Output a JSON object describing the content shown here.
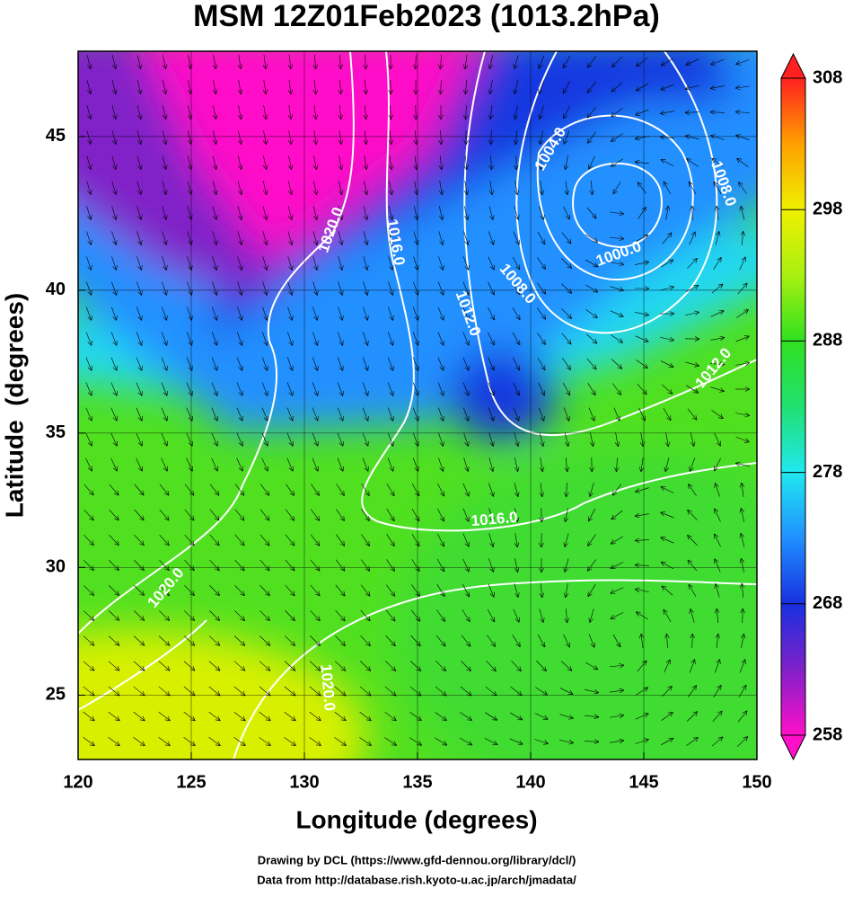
{
  "chart_data": {
    "type": "map",
    "title": "MSM 12Z01Feb2023 (1013.2hPa)",
    "x_label": "Longitude (degrees)",
    "y_label": "Latitude  (degrees)",
    "projection": "mercator",
    "xlim": [
      120,
      150
    ],
    "xticks": [
      120,
      125,
      130,
      135,
      140,
      145,
      150
    ],
    "ylim": [
      22.4,
      47.6
    ],
    "yticks": [
      25,
      30,
      35,
      40,
      45
    ],
    "grid": true,
    "colorbar": {
      "lim": [
        258,
        308
      ],
      "ticks": [
        258,
        268,
        278,
        288,
        298,
        308
      ],
      "colors": [
        "#ff10c8",
        "#8020c8",
        "#1830e0",
        "#2090ff",
        "#20e8f0",
        "#20e070",
        "#30e020",
        "#a8f010",
        "#f0f000",
        "#ffa000",
        "#ff2020"
      ]
    },
    "contour_labels": [
      {
        "text": "1020.0",
        "lon": 131.2,
        "lat": 42.0
      },
      {
        "text": "1016.0",
        "lon": 134.0,
        "lat": 41.6
      },
      {
        "text": "1012.0",
        "lon": 137.2,
        "lat": 39.2
      },
      {
        "text": "1008.0",
        "lon": 139.4,
        "lat": 40.2
      },
      {
        "text": "1004.0",
        "lon": 140.9,
        "lat": 44.6
      },
      {
        "text": "1000.0",
        "lon": 143.9,
        "lat": 41.2
      },
      {
        "text": "1008.0",
        "lon": 148.5,
        "lat": 43.5
      },
      {
        "text": "1012.0",
        "lon": 148.1,
        "lat": 37.3
      },
      {
        "text": "1016.0",
        "lon": 138.4,
        "lat": 31.8
      },
      {
        "text": "1020.0",
        "lon": 123.9,
        "lat": 29.2
      },
      {
        "text": "1020.0",
        "lon": 131.0,
        "lat": 25.3
      }
    ],
    "credits": [
      "Drawing by DCL (https://www.gfd-dennou.org/library/dcl/)",
      "Data from http://database.rish.kyoto-u.ac.jp/arch/jmadata/"
    ]
  }
}
